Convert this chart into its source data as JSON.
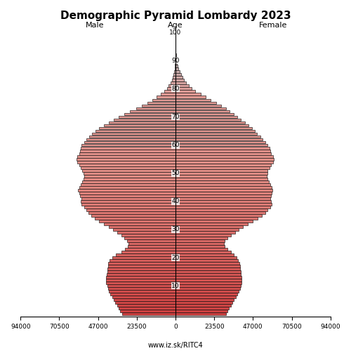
{
  "title": "Demographic Pyramid Lombardy 2023",
  "label_male": "Male",
  "label_female": "Female",
  "label_age": "Age",
  "footer": "www.iz.sk/RITC4",
  "xlim": 94000,
  "bar_height": 0.95,
  "ages": [
    0,
    1,
    2,
    3,
    4,
    5,
    6,
    7,
    8,
    9,
    10,
    11,
    12,
    13,
    14,
    15,
    16,
    17,
    18,
    19,
    20,
    21,
    22,
    23,
    24,
    25,
    26,
    27,
    28,
    29,
    30,
    31,
    32,
    33,
    34,
    35,
    36,
    37,
    38,
    39,
    40,
    41,
    42,
    43,
    44,
    45,
    46,
    47,
    48,
    49,
    50,
    51,
    52,
    53,
    54,
    55,
    56,
    57,
    58,
    59,
    60,
    61,
    62,
    63,
    64,
    65,
    66,
    67,
    68,
    69,
    70,
    71,
    72,
    73,
    74,
    75,
    76,
    77,
    78,
    79,
    80,
    81,
    82,
    83,
    84,
    85,
    86,
    87,
    88,
    89,
    90,
    91,
    92,
    93,
    94,
    95,
    96,
    97,
    98,
    99,
    100
  ],
  "male": [
    32500,
    33500,
    34500,
    35500,
    36500,
    37500,
    38500,
    39500,
    40500,
    41000,
    41500,
    42000,
    42200,
    42000,
    41800,
    41500,
    41200,
    41000,
    40800,
    40000,
    38500,
    36000,
    33000,
    30500,
    29000,
    28500,
    29500,
    31000,
    33000,
    35500,
    38000,
    40500,
    43500,
    46500,
    49000,
    51000,
    53000,
    54000,
    55500,
    57000,
    57500,
    57000,
    58000,
    58500,
    59000,
    58500,
    57500,
    56500,
    56000,
    55500,
    56000,
    56500,
    57500,
    58500,
    59500,
    60000,
    59500,
    58500,
    58000,
    57500,
    57000,
    55500,
    54000,
    52500,
    50500,
    48500,
    46500,
    43500,
    40500,
    37500,
    34500,
    31000,
    27500,
    24000,
    20500,
    17000,
    14000,
    11500,
    9000,
    6900,
    5200,
    4100,
    3100,
    2300,
    1700,
    1200,
    840,
    580,
    390,
    250,
    155,
    93,
    54,
    31,
    17,
    9,
    5,
    2,
    1,
    1,
    1
  ],
  "female": [
    30500,
    31500,
    32500,
    33500,
    34500,
    35500,
    36500,
    37500,
    38500,
    39000,
    39500,
    40000,
    40200,
    40000,
    39800,
    39500,
    39200,
    39000,
    38800,
    38000,
    37000,
    35500,
    33500,
    31500,
    30000,
    29500,
    30000,
    31500,
    33500,
    36000,
    38500,
    41000,
    44000,
    47000,
    50000,
    52500,
    54500,
    56000,
    57500,
    58500,
    58000,
    57500,
    58000,
    58500,
    58800,
    58500,
    57500,
    56500,
    56000,
    55500,
    55800,
    56000,
    57000,
    58000,
    59000,
    59500,
    59000,
    58000,
    57500,
    57000,
    56000,
    54500,
    53000,
    51500,
    49500,
    48000,
    46500,
    44500,
    42000,
    39500,
    37500,
    35500,
    33000,
    30500,
    27500,
    24500,
    21500,
    18500,
    15500,
    12000,
    9800,
    8000,
    6600,
    5300,
    4200,
    3300,
    2500,
    1900,
    1380,
    960,
    640,
    408,
    258,
    161,
    99,
    59,
    33,
    17,
    8,
    4,
    2
  ],
  "color_age_0": [
    0.8,
    0.25,
    0.25
  ],
  "color_age_50": [
    0.88,
    0.55,
    0.52
  ],
  "color_age_78": [
    0.88,
    0.6,
    0.58
  ],
  "color_age_88": [
    0.75,
    0.68,
    0.68
  ],
  "color_age_100": [
    0.72,
    0.67,
    0.67
  ]
}
